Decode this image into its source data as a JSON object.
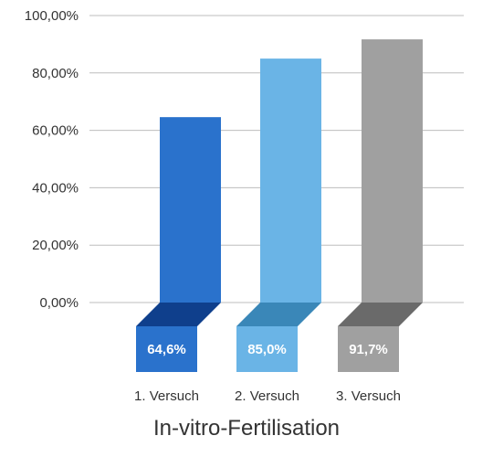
{
  "chart_data": {
    "type": "bar",
    "title": "In-vitro-Fertilisation",
    "categories": [
      "1. Versuch",
      "2. Versuch",
      "3. Versuch"
    ],
    "values": [
      64.6,
      85.0,
      91.7
    ],
    "value_labels": [
      "64,6%",
      "85,0%",
      "91,7%"
    ],
    "y_ticks": [
      0,
      20,
      40,
      60,
      80,
      100
    ],
    "y_tick_labels": [
      "0,00%",
      "20,00%",
      "40,00%",
      "60,00%",
      "80,00%",
      "100,00%"
    ],
    "ylim": [
      0,
      100
    ],
    "grid": true,
    "legend": "none",
    "colors": {
      "bars": [
        "#2a72cc",
        "#6ab4e6",
        "#a0a0a0"
      ],
      "folds": [
        "#0f3f8c",
        "#3a87b8",
        "#6a6a6a"
      ],
      "grid": "#bdbdbd",
      "text": "#333333"
    }
  }
}
